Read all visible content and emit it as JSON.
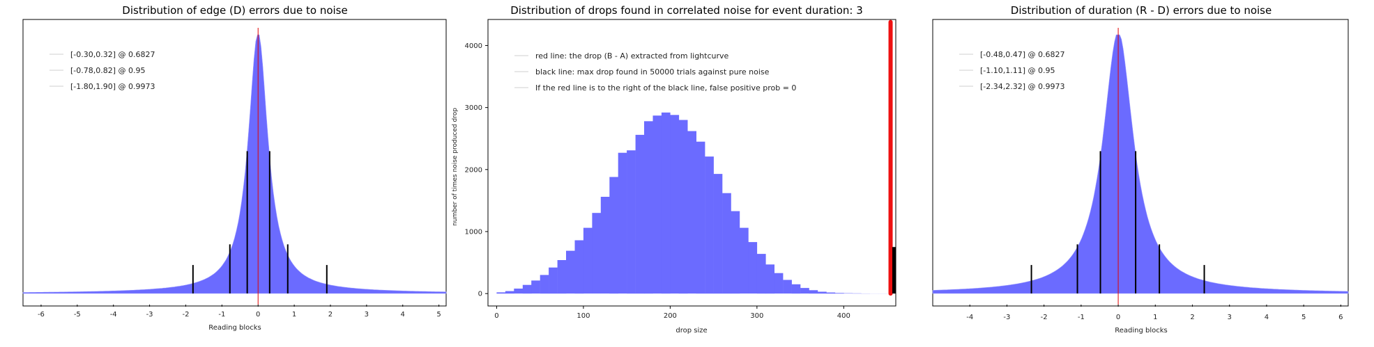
{
  "chart_data": [
    {
      "type": "histogram",
      "title": "Distribution of edge (D) errors due to noise",
      "xlabel": "Reading blocks",
      "ylabel": "",
      "xlim": [
        -6.5,
        5.2
      ],
      "xticks": [
        -6,
        -5,
        -4,
        -3,
        -2,
        -1,
        0,
        1,
        2,
        3,
        4,
        5
      ],
      "histogram": {
        "center": 0.0,
        "sigma": 0.33,
        "peak": 1.0,
        "color": "#6b6bff",
        "tail": 0.012
      },
      "center_line": {
        "x": 0.0,
        "color": "#e00000"
      },
      "confidence_lines": [
        {
          "x": -0.3,
          "height": 0.55
        },
        {
          "x": 0.32,
          "height": 0.55
        },
        {
          "x": -0.78,
          "height": 0.19
        },
        {
          "x": 0.82,
          "height": 0.19
        },
        {
          "x": -1.8,
          "height": 0.11
        },
        {
          "x": 1.9,
          "height": 0.11
        }
      ],
      "legend": [
        "[-0.30,0.32] @ 0.6827",
        "[-0.78,0.82] @ 0.95",
        "[-1.80,1.90] @ 0.9973"
      ]
    },
    {
      "type": "bar",
      "title": "Distribution of drops found in correlated noise for event duration: 3",
      "xlabel": "drop size",
      "ylabel": "number of times noise produced drop",
      "xlim": [
        -10,
        460
      ],
      "ylim": [
        -200,
        4420
      ],
      "xticks": [
        0,
        100,
        200,
        300,
        400
      ],
      "yticks": [
        0,
        1000,
        2000,
        3000,
        4000
      ],
      "bar_color": "#6b6bff",
      "bin_width": 10,
      "bins_x": [
        0,
        10,
        20,
        30,
        40,
        50,
        60,
        70,
        80,
        90,
        100,
        110,
        120,
        130,
        140,
        150,
        160,
        170,
        180,
        190,
        200,
        210,
        220,
        230,
        240,
        250,
        260,
        270,
        280,
        290,
        300,
        310,
        320,
        330,
        340,
        350,
        360,
        370,
        380,
        390,
        400,
        410,
        420,
        430,
        440
      ],
      "bins_y": [
        20,
        40,
        80,
        140,
        210,
        300,
        420,
        540,
        690,
        860,
        1060,
        1300,
        1560,
        1880,
        2270,
        2310,
        2560,
        2780,
        2870,
        2920,
        2880,
        2800,
        2620,
        2450,
        2210,
        1930,
        1620,
        1330,
        1060,
        830,
        640,
        470,
        330,
        220,
        150,
        90,
        55,
        30,
        18,
        10,
        6,
        4,
        2,
        1,
        1
      ],
      "red_line": {
        "x": 454,
        "y": 4380,
        "color": "#ee1111"
      },
      "black_line": {
        "x": 458,
        "y": 750,
        "color": "#000000"
      },
      "legend": [
        "red line: the drop (B - A) extracted from lightcurve",
        "black line: max drop found in 50000 trials against pure noise",
        "If the red line is to the right of the black line, false positive prob = 0"
      ]
    },
    {
      "type": "histogram",
      "title": "Distribution of duration (R - D) errors due to noise",
      "xlabel": "Reading blocks",
      "ylabel": "",
      "xlim": [
        -5.0,
        6.2
      ],
      "xticks": [
        -4,
        -3,
        -2,
        -1,
        0,
        1,
        2,
        3,
        4,
        5,
        6
      ],
      "histogram": {
        "center": 0.0,
        "sigma": 0.5,
        "peak": 1.0,
        "color": "#6b6bff",
        "tail": 0.012
      },
      "center_line": {
        "x": 0.0,
        "color": "#e00000"
      },
      "confidence_lines": [
        {
          "x": -0.48,
          "height": 0.55
        },
        {
          "x": 0.47,
          "height": 0.55
        },
        {
          "x": -1.1,
          "height": 0.19
        },
        {
          "x": 1.11,
          "height": 0.19
        },
        {
          "x": -2.34,
          "height": 0.11
        },
        {
          "x": 2.32,
          "height": 0.11
        }
      ],
      "legend": [
        "[-0.48,0.47] @ 0.6827",
        "[-1.10,1.11] @ 0.95",
        "[-2.34,2.32] @ 0.9973"
      ]
    }
  ]
}
